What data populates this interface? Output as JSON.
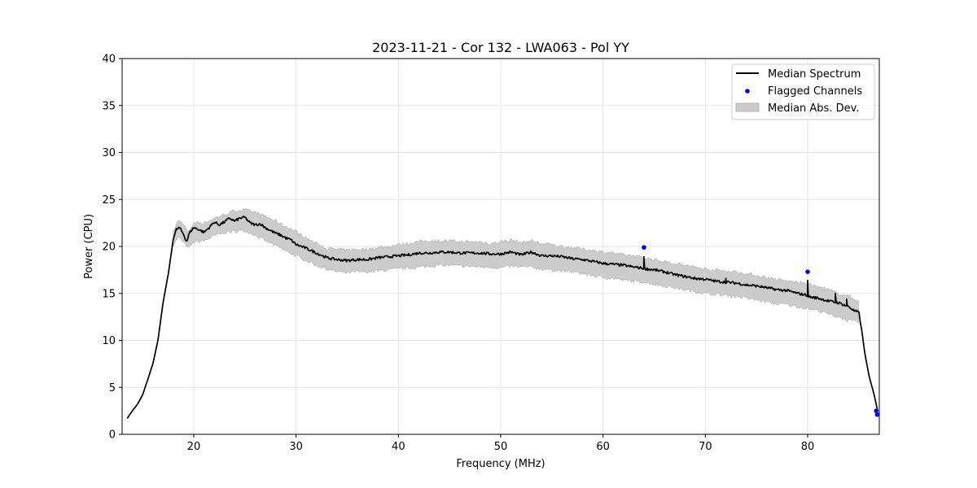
{
  "chart_data": {
    "type": "line",
    "title": "2023-11-21 - Cor 132 - LWA063 - Pol YY",
    "xlabel": "Frequency (MHz)",
    "ylabel": "Power (CPU)",
    "xlim": [
      13.0,
      87.0
    ],
    "ylim": [
      0,
      40
    ],
    "x_ticks": [
      20,
      30,
      40,
      50,
      60,
      70,
      80
    ],
    "y_ticks": [
      0,
      5,
      10,
      15,
      20,
      25,
      30,
      35,
      40
    ],
    "grid": true,
    "legend_position": "top-right",
    "legend": [
      {
        "label": "Median Spectrum",
        "kind": "line"
      },
      {
        "label": "Flagged Channels",
        "kind": "marker"
      },
      {
        "label": "Median Abs. Dev.",
        "kind": "band"
      }
    ],
    "series": [
      {
        "name": "Median Spectrum",
        "color": "#000000",
        "x": [
          13.5,
          14,
          14.5,
          15,
          15.5,
          16,
          16.5,
          17,
          17.5,
          18,
          18.3,
          18.6,
          19,
          19.3,
          19.6,
          20,
          20.5,
          21,
          21.5,
          22,
          22.5,
          23,
          23.5,
          24,
          24.5,
          25,
          25.5,
          26,
          26.5,
          27,
          27.5,
          28,
          28.5,
          29,
          29.5,
          30,
          31,
          32,
          33,
          34,
          35,
          36,
          37,
          38,
          39,
          40,
          41,
          42,
          43,
          44,
          45,
          46,
          47,
          48,
          49,
          50,
          51,
          52,
          53,
          54,
          55,
          56,
          57,
          58,
          59,
          60,
          61,
          62,
          63,
          63.8,
          64.3,
          65,
          66,
          67,
          68,
          69,
          70,
          71,
          72,
          73,
          74,
          75,
          76,
          77,
          78,
          79,
          80,
          80.3,
          81,
          82,
          83,
          84,
          84.6,
          85,
          85.3,
          85.6,
          86,
          86.5,
          86.9
        ],
        "y": [
          1.7,
          2.5,
          3.2,
          4.2,
          5.8,
          7.5,
          10.0,
          14.0,
          17.0,
          20.8,
          21.8,
          22.0,
          21.3,
          20.5,
          21.5,
          22.0,
          21.8,
          21.5,
          22.0,
          22.6,
          22.3,
          22.6,
          23.0,
          22.7,
          23.0,
          23.1,
          22.5,
          22.3,
          22.4,
          22.0,
          21.7,
          21.4,
          21.2,
          20.9,
          20.7,
          20.2,
          19.8,
          19.3,
          18.8,
          18.6,
          18.5,
          18.6,
          18.6,
          18.8,
          18.9,
          19.0,
          19.1,
          19.3,
          19.3,
          19.4,
          19.4,
          19.3,
          19.3,
          19.3,
          19.2,
          19.2,
          19.4,
          19.1,
          19.4,
          19.0,
          19.0,
          18.9,
          18.7,
          18.6,
          18.4,
          18.2,
          18.1,
          18.0,
          17.8,
          17.7,
          17.6,
          17.5,
          17.3,
          17.0,
          16.8,
          16.6,
          16.5,
          16.3,
          16.2,
          16.1,
          15.9,
          15.8,
          15.6,
          15.4,
          15.3,
          15.0,
          14.8,
          14.6,
          14.5,
          14.2,
          14.0,
          13.6,
          13.1,
          13.0,
          11.0,
          8.5,
          6.2,
          4.2,
          2.2
        ]
      },
      {
        "name": "Median Abs. Dev.",
        "color": "#cccccc",
        "x": [
          18.0,
          18.5,
          19,
          19.5,
          20,
          21,
          22,
          23,
          24,
          25,
          26,
          27,
          28,
          29,
          30,
          31,
          32,
          33,
          34,
          35,
          36,
          37,
          38,
          39,
          40,
          41,
          42,
          43,
          44,
          45,
          46,
          47,
          48,
          49,
          50,
          51,
          52,
          53,
          54,
          55,
          56,
          57,
          58,
          59,
          60,
          61,
          62,
          63,
          64,
          65,
          66,
          67,
          68,
          69,
          70,
          71,
          72,
          73,
          74,
          75,
          76,
          77,
          78,
          79,
          80,
          81,
          82,
          83,
          84,
          85
        ],
        "lower": [
          20.2,
          21.0,
          20.4,
          19.8,
          20.5,
          20.6,
          21.1,
          21.5,
          21.6,
          21.7,
          21.2,
          20.6,
          20.1,
          19.5,
          19.0,
          18.5,
          18.0,
          17.6,
          17.3,
          17.2,
          17.3,
          17.3,
          17.4,
          17.5,
          17.6,
          17.7,
          17.8,
          17.9,
          18.0,
          18.0,
          17.9,
          17.9,
          17.8,
          17.8,
          17.7,
          17.9,
          17.8,
          17.8,
          17.6,
          17.5,
          17.4,
          17.3,
          17.1,
          16.9,
          16.7,
          16.6,
          16.4,
          16.3,
          16.2,
          16.0,
          15.8,
          15.6,
          15.4,
          15.2,
          15.0,
          14.9,
          14.8,
          14.7,
          14.5,
          14.3,
          14.1,
          13.9,
          13.8,
          13.6,
          13.4,
          13.2,
          12.8,
          12.5,
          12.1,
          11.9
        ],
        "upper": [
          21.6,
          22.8,
          22.4,
          21.4,
          22.6,
          22.5,
          23.0,
          23.4,
          23.8,
          23.9,
          23.6,
          23.2,
          22.7,
          22.1,
          21.6,
          20.9,
          20.3,
          19.8,
          19.7,
          19.6,
          19.7,
          19.7,
          19.9,
          20.0,
          20.2,
          20.3,
          20.5,
          20.6,
          20.6,
          20.6,
          20.5,
          20.5,
          20.5,
          20.3,
          20.5,
          20.7,
          20.4,
          20.6,
          20.3,
          20.2,
          20.0,
          19.9,
          19.7,
          19.6,
          19.4,
          19.3,
          19.1,
          19.0,
          18.8,
          18.6,
          18.4,
          18.2,
          18.0,
          17.8,
          17.6,
          17.5,
          17.4,
          17.3,
          17.1,
          16.9,
          16.7,
          16.5,
          16.3,
          16.2,
          16.0,
          15.7,
          15.4,
          15.0,
          14.7,
          14.2
        ]
      },
      {
        "name": "Flagged Channels",
        "color": "#0000ff",
        "x": [
          64.0,
          80.0,
          86.7,
          86.8
        ],
        "y": [
          19.9,
          17.3,
          2.5,
          2.1
        ]
      }
    ],
    "spikes": [
      {
        "x": 64.0,
        "base": 17.8,
        "peak": 18.9
      },
      {
        "x": 72.0,
        "base": 16.1,
        "peak": 16.6
      },
      {
        "x": 80.0,
        "base": 14.6,
        "peak": 16.4
      },
      {
        "x": 82.7,
        "base": 14.4,
        "peak": 15.0
      },
      {
        "x": 83.8,
        "base": 13.8,
        "peak": 14.4
      }
    ]
  }
}
